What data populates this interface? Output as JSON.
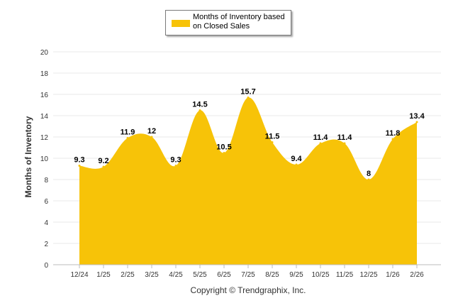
{
  "colors": {
    "fill": "#F7C308",
    "grid": "#e9e9e9",
    "axis": "#bbbbbb",
    "text": "#333333"
  },
  "legend": {
    "label": "Months of Inventory based on Closed Sales"
  },
  "footer": {
    "copyright": "Copyright © Trendgraphix, Inc."
  },
  "chart_data": {
    "type": "area",
    "title": "",
    "xlabel": "",
    "ylabel": "Months of Inventory",
    "categories": [
      "12/24",
      "1/25",
      "2/25",
      "3/25",
      "4/25",
      "5/25",
      "6/25",
      "7/25",
      "8/25",
      "9/25",
      "10/25",
      "11/25",
      "12/25",
      "1/26",
      "2/26"
    ],
    "series": [
      {
        "name": "Months of Inventory based on Closed Sales",
        "values": [
          9.3,
          9.2,
          11.9,
          12,
          9.3,
          14.5,
          10.5,
          15.7,
          11.5,
          9.4,
          11.4,
          11.4,
          8,
          11.8,
          13.4
        ]
      }
    ],
    "ylim": [
      0,
      20
    ],
    "yticks": [
      0,
      2,
      4,
      6,
      8,
      10,
      12,
      14,
      16,
      18,
      20
    ],
    "grid": true,
    "legend_position": "top-center"
  }
}
